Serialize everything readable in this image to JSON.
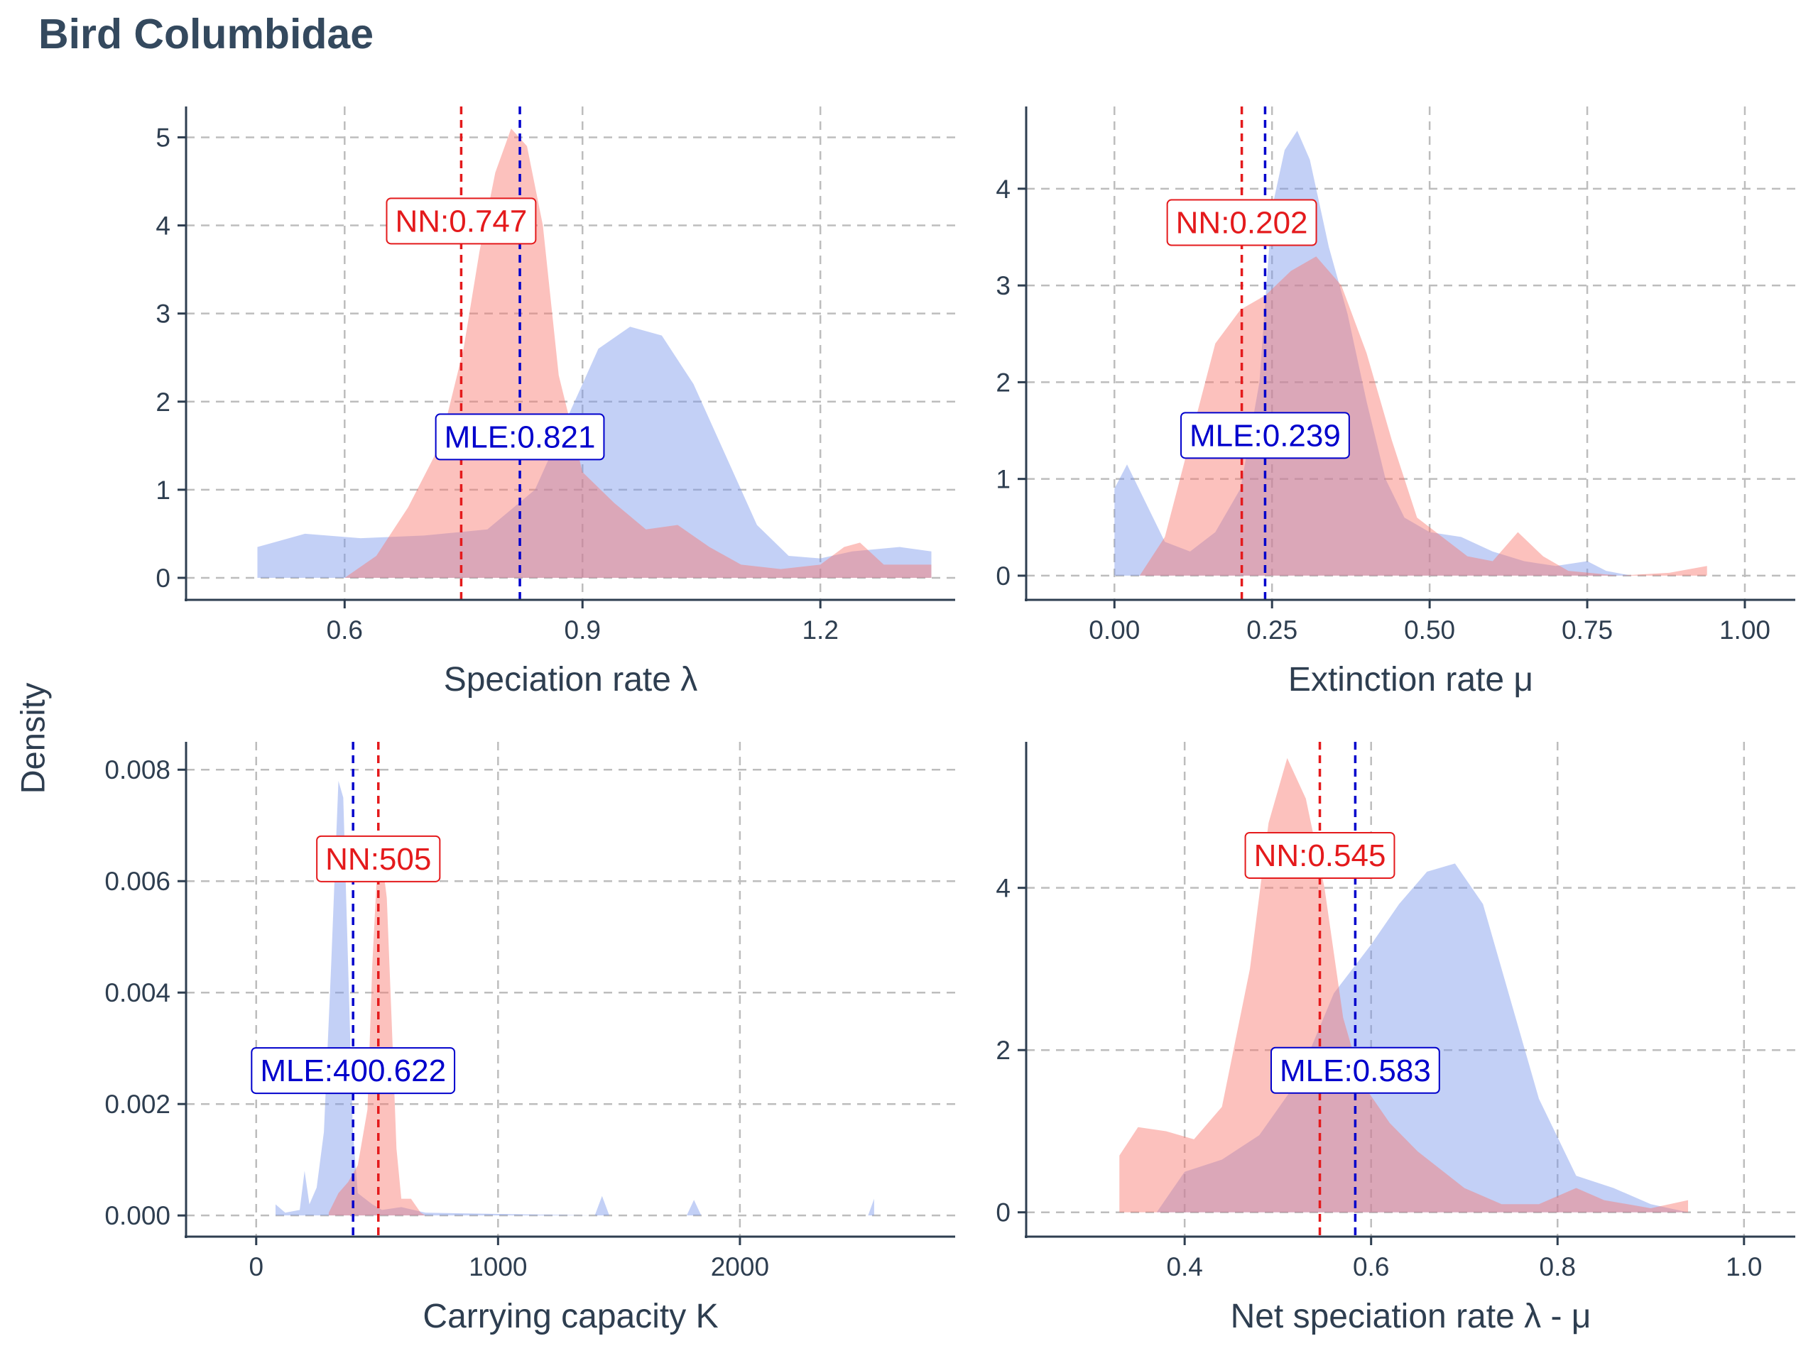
{
  "title": "Bird Columbidae",
  "ylabel": "Density",
  "colors": {
    "nn": "#f8766d",
    "mle": "#7b96ea",
    "nn_line": "#e41a1c",
    "mle_line": "#0000cc",
    "grid": "#bdbdbd",
    "axis": "#2e3e50"
  },
  "chart_data": [
    {
      "type": "area",
      "xlabel": "Speciation rate λ",
      "xlim": [
        0.4,
        1.37
      ],
      "ylim": [
        -0.25,
        5.35
      ],
      "xticks": [
        0.6,
        0.9,
        1.2
      ],
      "xtick_labels": [
        "0.6",
        "0.9",
        "1.2"
      ],
      "yticks": [
        0,
        1,
        2,
        3,
        4,
        5
      ],
      "ytick_labels": [
        "0",
        "1",
        "2",
        "3",
        "4",
        "5"
      ],
      "series": [
        {
          "name": "MLE",
          "x": [
            0.49,
            0.55,
            0.62,
            0.7,
            0.78,
            0.84,
            0.88,
            0.92,
            0.96,
            1.0,
            1.04,
            1.08,
            1.12,
            1.16,
            1.2,
            1.24,
            1.3,
            1.34
          ],
          "y": [
            0.35,
            0.5,
            0.45,
            0.48,
            0.55,
            1.0,
            1.8,
            2.6,
            2.85,
            2.75,
            2.2,
            1.4,
            0.6,
            0.25,
            0.22,
            0.3,
            0.35,
            0.3
          ]
        },
        {
          "name": "NN",
          "x": [
            0.6,
            0.64,
            0.68,
            0.72,
            0.75,
            0.77,
            0.79,
            0.81,
            0.83,
            0.85,
            0.87,
            0.9,
            0.94,
            0.98,
            1.02,
            1.06,
            1.1,
            1.15,
            1.2,
            1.23,
            1.25,
            1.28,
            1.34
          ],
          "y": [
            0.0,
            0.25,
            0.8,
            1.5,
            2.6,
            3.7,
            4.6,
            5.1,
            4.9,
            4.0,
            2.3,
            1.2,
            0.85,
            0.55,
            0.6,
            0.35,
            0.15,
            0.1,
            0.15,
            0.35,
            0.4,
            0.15,
            0.15
          ]
        }
      ],
      "nn_estimate": 0.747,
      "mle_estimate": 0.821,
      "nn_label": "NN:0.747",
      "mle_label": "MLE:0.821",
      "nn_label_y": 4.05,
      "mle_label_y": 1.6
    },
    {
      "type": "area",
      "xlabel": "Extinction rate μ",
      "xlim": [
        -0.14,
        1.08
      ],
      "ylim": [
        -0.25,
        4.85
      ],
      "xticks": [
        0.0,
        0.25,
        0.5,
        0.75,
        1.0
      ],
      "xtick_labels": [
        "0.00",
        "0.25",
        "0.50",
        "0.75",
        "1.00"
      ],
      "yticks": [
        0,
        1,
        2,
        3,
        4
      ],
      "ytick_labels": [
        "0",
        "1",
        "2",
        "3",
        "4"
      ],
      "series": [
        {
          "name": "MLE",
          "x": [
            0.0,
            0.02,
            0.05,
            0.08,
            0.12,
            0.16,
            0.2,
            0.23,
            0.25,
            0.27,
            0.29,
            0.31,
            0.34,
            0.37,
            0.4,
            0.43,
            0.46,
            0.5,
            0.55,
            0.6,
            0.65,
            0.7,
            0.75,
            0.78,
            0.82
          ],
          "y": [
            0.9,
            1.15,
            0.75,
            0.35,
            0.25,
            0.45,
            0.9,
            2.0,
            3.8,
            4.4,
            4.6,
            4.3,
            3.4,
            2.7,
            1.8,
            1.0,
            0.6,
            0.45,
            0.4,
            0.25,
            0.15,
            0.1,
            0.15,
            0.05,
            0.0
          ]
        },
        {
          "name": "NN",
          "x": [
            0.04,
            0.08,
            0.12,
            0.16,
            0.2,
            0.24,
            0.28,
            0.32,
            0.36,
            0.4,
            0.44,
            0.48,
            0.52,
            0.56,
            0.6,
            0.64,
            0.68,
            0.72,
            0.8,
            0.88,
            0.94
          ],
          "y": [
            0.0,
            0.4,
            1.4,
            2.4,
            2.75,
            2.9,
            3.15,
            3.3,
            3.0,
            2.3,
            1.4,
            0.6,
            0.4,
            0.2,
            0.15,
            0.45,
            0.2,
            0.05,
            0.0,
            0.03,
            0.1
          ]
        }
      ],
      "nn_estimate": 0.202,
      "mle_estimate": 0.239,
      "nn_label": "NN:0.202",
      "mle_label": "MLE:0.239",
      "nn_label_y": 3.65,
      "mle_label_y": 1.45
    },
    {
      "type": "area",
      "xlabel": "Carrying capacity K",
      "xlim": [
        -290,
        2890
      ],
      "ylim": [
        -0.00038,
        0.0085
      ],
      "xticks": [
        0,
        1000,
        2000
      ],
      "xtick_labels": [
        "0",
        "1000",
        "2000"
      ],
      "yticks": [
        0,
        0.002,
        0.004,
        0.006,
        0.008
      ],
      "ytick_labels": [
        "0.000",
        "0.002",
        "0.004",
        "0.006",
        "0.008"
      ],
      "series": [
        {
          "name": "MLE",
          "x": [
            80,
            120,
            180,
            200,
            220,
            250,
            280,
            310,
            340,
            360,
            380,
            400,
            420,
            450,
            480,
            520,
            600,
            700,
            1400,
            1430,
            1460,
            1780,
            1810,
            1840,
            2530,
            2555
          ],
          "y": [
            0.0002,
            5e-05,
            0.0001,
            0.0008,
            0.0002,
            0.0005,
            0.0015,
            0.0045,
            0.0078,
            0.0075,
            0.0045,
            0.0015,
            0.0004,
            0.0003,
            0.0002,
            0.0001,
            0.00015,
            5e-05,
            0.0,
            0.00035,
            0.0,
            0.0,
            0.00028,
            0.0,
            0.0,
            0.0003
          ]
        },
        {
          "name": "NN",
          "x": [
            300,
            340,
            380,
            420,
            460,
            480,
            500,
            520,
            540,
            560,
            580,
            600,
            640,
            680,
            700
          ],
          "y": [
            5e-05,
            0.0004,
            0.0006,
            0.0009,
            0.0019,
            0.0045,
            0.0062,
            0.0064,
            0.0057,
            0.0035,
            0.0012,
            0.0003,
            0.0003,
            5e-05,
            0.0
          ]
        }
      ],
      "nn_estimate": 505,
      "mle_estimate": 400.622,
      "nn_label": "NN:505",
      "mle_label": "MLE:400.622",
      "nn_label_y": 0.0064,
      "mle_label_y": 0.0026
    },
    {
      "type": "area",
      "xlabel": "Net speciation rate λ - μ",
      "xlim": [
        0.23,
        1.055
      ],
      "ylim": [
        -0.3,
        5.8
      ],
      "xticks": [
        0.4,
        0.6,
        0.8,
        1.0
      ],
      "xtick_labels": [
        "0.4",
        "0.6",
        "0.8",
        "1.0"
      ],
      "yticks": [
        0,
        2,
        4
      ],
      "ytick_labels": [
        "0",
        "2",
        "4"
      ],
      "series": [
        {
          "name": "MLE",
          "x": [
            0.37,
            0.4,
            0.44,
            0.48,
            0.52,
            0.56,
            0.6,
            0.63,
            0.66,
            0.69,
            0.72,
            0.75,
            0.78,
            0.82,
            0.86,
            0.9,
            0.94
          ],
          "y": [
            0.0,
            0.5,
            0.65,
            0.95,
            1.6,
            2.7,
            3.3,
            3.8,
            4.2,
            4.3,
            3.8,
            2.6,
            1.4,
            0.45,
            0.3,
            0.1,
            0.0
          ]
        },
        {
          "name": "NN",
          "x": [
            0.33,
            0.35,
            0.38,
            0.41,
            0.44,
            0.47,
            0.49,
            0.51,
            0.53,
            0.55,
            0.57,
            0.59,
            0.62,
            0.65,
            0.7,
            0.74,
            0.78,
            0.8,
            0.82,
            0.85,
            0.9,
            0.94
          ],
          "y": [
            0.7,
            1.05,
            1.0,
            0.9,
            1.3,
            3.0,
            4.8,
            5.6,
            5.1,
            4.0,
            2.4,
            1.6,
            1.1,
            0.75,
            0.3,
            0.1,
            0.1,
            0.2,
            0.3,
            0.15,
            0.05,
            0.15
          ]
        }
      ],
      "nn_estimate": 0.545,
      "mle_estimate": 0.583,
      "nn_label": "NN:0.545",
      "mle_label": "MLE:0.583",
      "nn_label_y": 4.4,
      "mle_label_y": 1.75
    }
  ]
}
